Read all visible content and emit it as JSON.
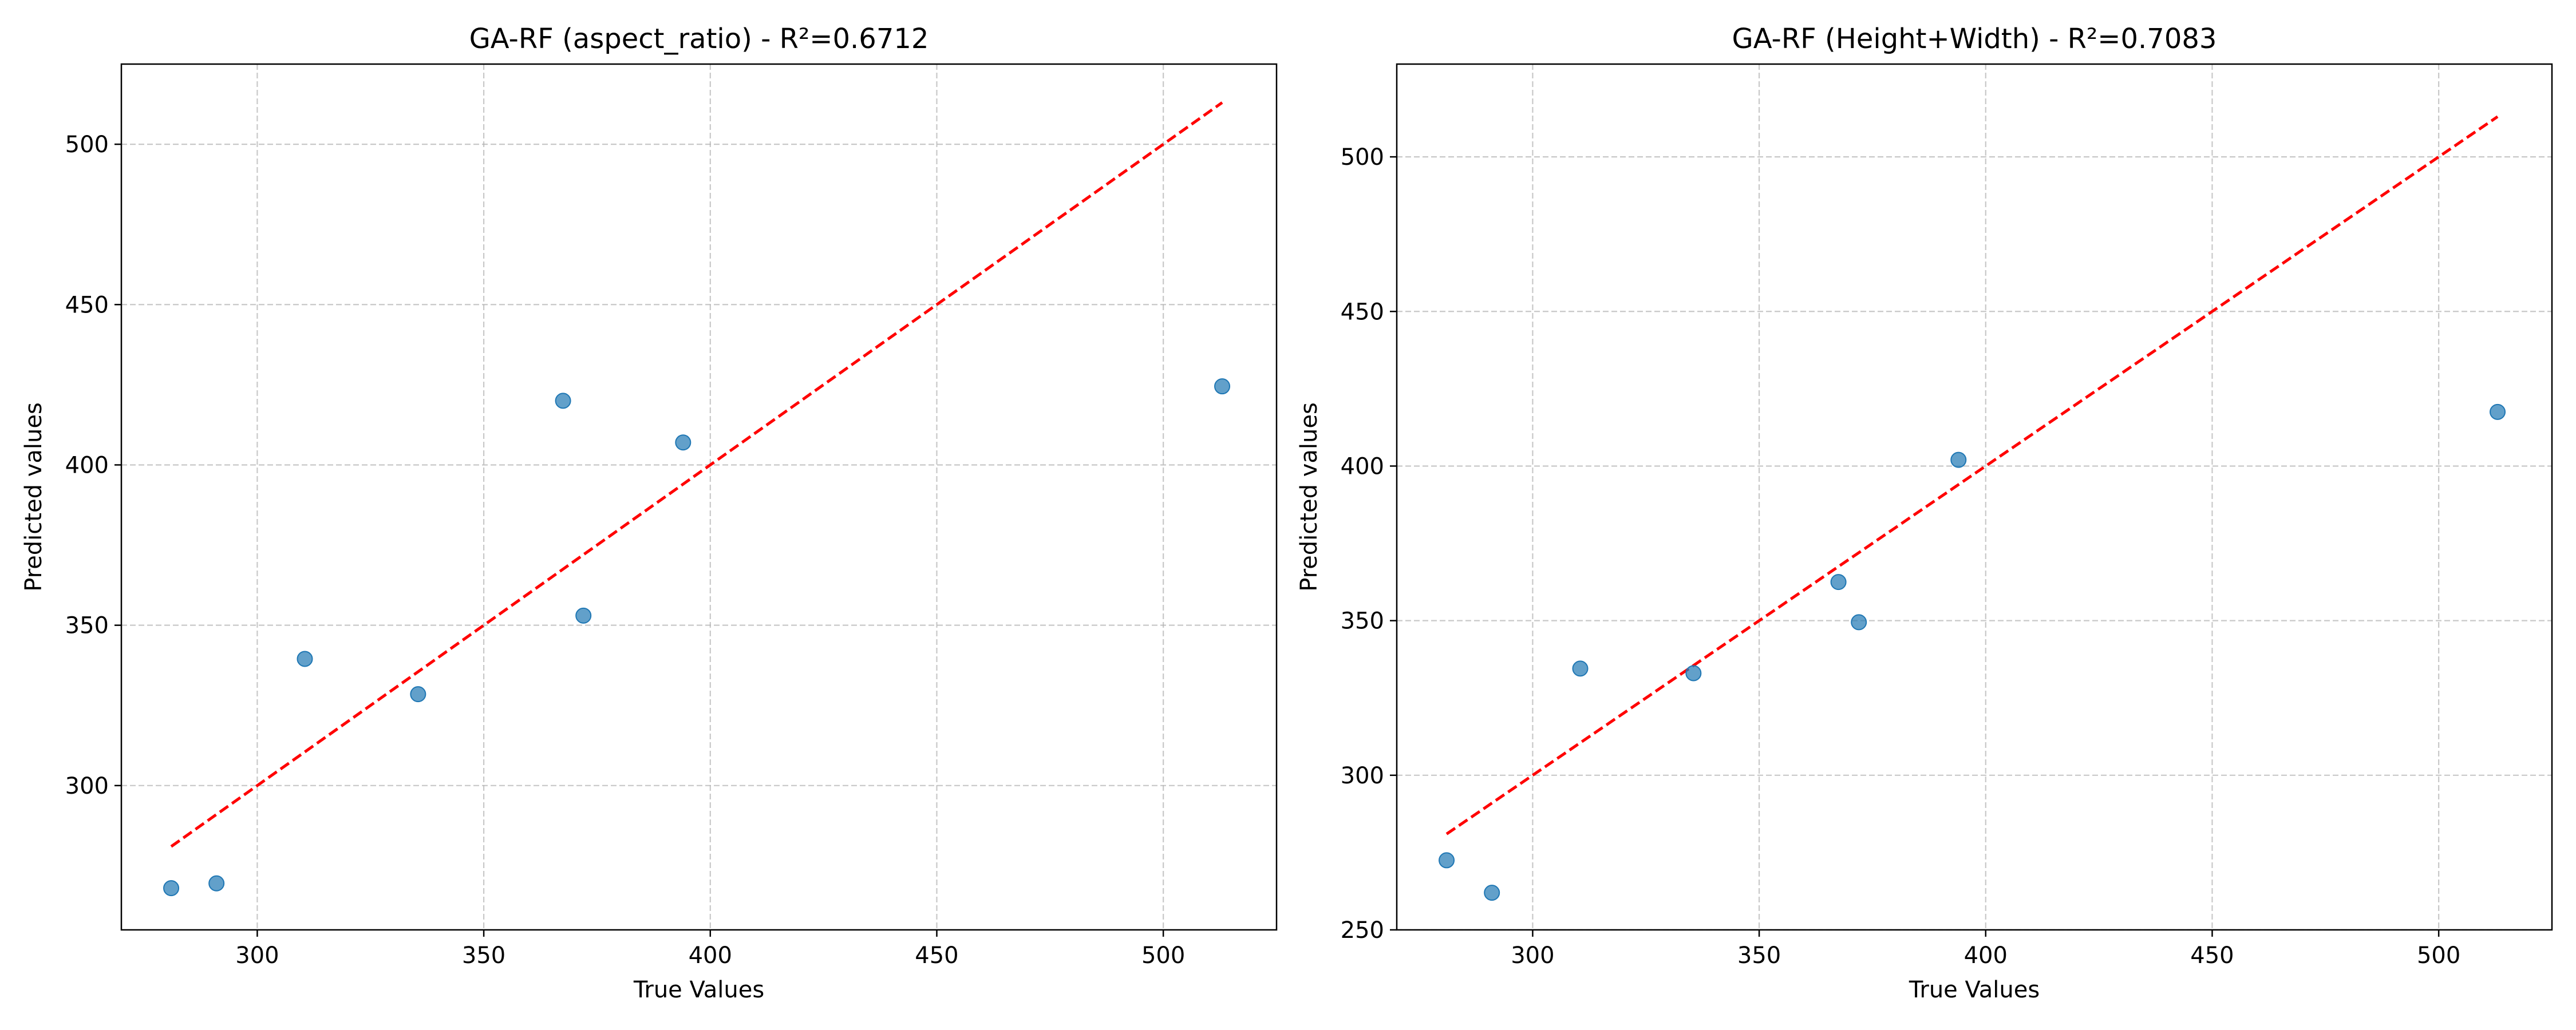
{
  "chart_data": [
    {
      "type": "scatter",
      "title": "GA-RF (aspect_ratio) - R²=0.6712",
      "xlabel": "True Values",
      "ylabel": "Predicted values",
      "xlim": [
        270,
        525
      ],
      "ylim": [
        255,
        525
      ],
      "xticks": [
        300,
        350,
        400,
        450,
        500
      ],
      "yticks": [
        300,
        350,
        400,
        450,
        500
      ],
      "grid": true,
      "point_color": "#1f77b4",
      "reference_line": {
        "style": "dashed",
        "color": "#ff0000",
        "x": [
          281,
          513
        ],
        "y": [
          281,
          513
        ]
      },
      "points": [
        {
          "x": 281,
          "y": 268
        },
        {
          "x": 291,
          "y": 269.5
        },
        {
          "x": 310.5,
          "y": 339.5
        },
        {
          "x": 335.5,
          "y": 328.5
        },
        {
          "x": 367.5,
          "y": 420
        },
        {
          "x": 372,
          "y": 353
        },
        {
          "x": 394,
          "y": 407
        },
        {
          "x": 513,
          "y": 424.5
        }
      ]
    },
    {
      "type": "scatter",
      "title": "GA-RF (Height+Width) - R²=0.7083",
      "xlabel": "True Values",
      "ylabel": "Predicted values",
      "xlim": [
        270,
        525
      ],
      "ylim": [
        250,
        530
      ],
      "xticks": [
        300,
        350,
        400,
        450,
        500
      ],
      "yticks": [
        250,
        300,
        350,
        400,
        450,
        500
      ],
      "grid": true,
      "point_color": "#1f77b4",
      "reference_line": {
        "style": "dashed",
        "color": "#ff0000",
        "x": [
          281,
          513
        ],
        "y": [
          281,
          513
        ]
      },
      "points": [
        {
          "x": 281,
          "y": 272.5
        },
        {
          "x": 291,
          "y": 262
        },
        {
          "x": 310.5,
          "y": 334.5
        },
        {
          "x": 335.5,
          "y": 333
        },
        {
          "x": 367.5,
          "y": 362.5
        },
        {
          "x": 372,
          "y": 349.5
        },
        {
          "x": 394,
          "y": 402
        },
        {
          "x": 513,
          "y": 417.5
        }
      ]
    }
  ]
}
